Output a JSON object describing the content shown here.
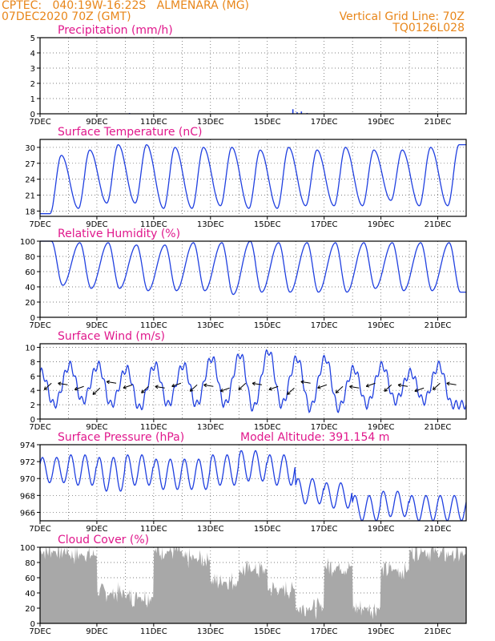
{
  "header": {
    "line1": "CPTEC:   040:19W-16:22S   ALMENARA (MG)",
    "line2": "07DEC2020 70Z (GMT)",
    "grid_note": "Vertical Grid Line: 70Z",
    "code": "TQ0126L028"
  },
  "colors": {
    "header": "#e8861a",
    "title": "#e0188c",
    "line": "#2040e0",
    "cloud": "#a8a8a8"
  },
  "x_ticks": [
    "7DEC",
    "9DEC",
    "11DEC",
    "13DEC",
    "15DEC",
    "17DEC",
    "19DEC",
    "21DEC"
  ],
  "chart_data": [
    {
      "type": "bar",
      "title": "Precipitation (mm/h)",
      "ylim": [
        0,
        5
      ],
      "yticks": [
        0,
        1,
        2,
        3,
        4,
        5
      ],
      "x_days": [
        3.15,
        8.9,
        9.05,
        9.2,
        9.4
      ],
      "values": [
        0.05,
        0.3,
        0.1,
        0.15,
        0.05
      ]
    },
    {
      "type": "line",
      "title": "Surface Temperature (nC)",
      "ylim": [
        17,
        31.5
      ],
      "yticks": [
        18,
        21,
        24,
        27,
        30
      ],
      "daily_min": [
        17.5,
        18.5,
        19.5,
        19.5,
        18.5,
        18.5,
        19,
        18.5,
        18.5,
        19,
        19,
        19,
        20,
        19,
        19
      ],
      "daily_max": [
        28.5,
        29.5,
        30.5,
        30.5,
        30,
        30,
        30,
        29.5,
        30,
        29.5,
        30,
        29.5,
        29.5,
        30,
        30.5
      ]
    },
    {
      "type": "line",
      "title": "Relative Humidity (%)",
      "ylim": [
        0,
        100
      ],
      "yticks": [
        0,
        20,
        40,
        60,
        80,
        100
      ],
      "daily_min": [
        42,
        38,
        38,
        35,
        35,
        35,
        30,
        33,
        33,
        33,
        33,
        38,
        35,
        35,
        33
      ],
      "daily_max": [
        100,
        98,
        98,
        95,
        95,
        98,
        98,
        100,
        98,
        98,
        98,
        98,
        98,
        98,
        98
      ]
    },
    {
      "type": "line",
      "title": "Surface Wind (m/s)",
      "ylim": [
        0,
        10.5
      ],
      "yticks": [
        0,
        2,
        4,
        6,
        8,
        10
      ],
      "daily_min": [
        2,
        2.5,
        2,
        1.5,
        2,
        2,
        2,
        1.5,
        2,
        1.5,
        1.5,
        2,
        2.5,
        2.5,
        2
      ],
      "daily_max": [
        6.5,
        7.5,
        7.5,
        7,
        7.5,
        7.5,
        8.5,
        9,
        9.5,
        8.5,
        8.5,
        7,
        7.5,
        6.5,
        7.5
      ]
    },
    {
      "type": "line",
      "title": "Surface Pressure (hPa)",
      "subtitle": "Model Altitude: 391.154 m",
      "ylim": [
        965,
        974
      ],
      "yticks": [
        966,
        968,
        970,
        972,
        974
      ],
      "daily_mean": [
        971,
        971,
        970.5,
        971,
        970.5,
        970.5,
        971,
        971.5,
        971,
        968.5,
        968,
        966.5,
        967,
        966.5,
        966.5
      ],
      "amplitude": [
        1.5,
        1.8,
        2,
        1.8,
        1.8,
        1.8,
        1.8,
        1.8,
        1.8,
        1.5,
        1.5,
        1.5,
        1.5,
        1.5,
        1.5
      ]
    },
    {
      "type": "area",
      "title": "Cloud Cover (%)",
      "ylim": [
        0,
        100
      ],
      "yticks": [
        0,
        20,
        40,
        60,
        80,
        100
      ],
      "daily_level": [
        95,
        90,
        40,
        35,
        95,
        85,
        55,
        70,
        45,
        20,
        75,
        20,
        70,
        95,
        90
      ]
    }
  ]
}
